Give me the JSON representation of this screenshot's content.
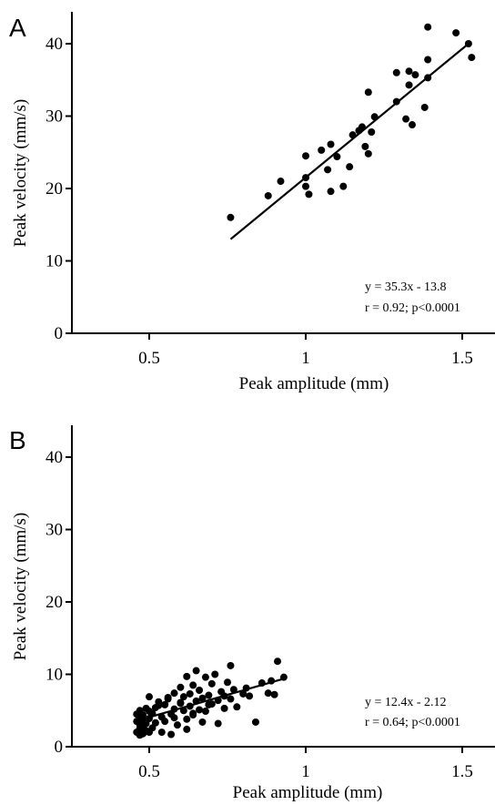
{
  "chart_data": [
    {
      "type": "scatter",
      "panel": "A",
      "xlabel": "Peak amplitude (mm)",
      "ylabel": "Peak velocity (mm/s)",
      "xlim": [
        0.25,
        1.58
      ],
      "ylim": [
        0,
        45
      ],
      "x_ticks": [
        0.5,
        1,
        1.5
      ],
      "x_tick_labels": [
        "0.5",
        "1",
        "1.5"
      ],
      "y_ticks": [
        0,
        10,
        20,
        30,
        40
      ],
      "y_tick_labels": [
        "0",
        "10",
        "20",
        "30",
        "40"
      ],
      "grid": false,
      "fit_line": {
        "x": [
          0.76,
          1.52
        ],
        "y": [
          13.0,
          40.0
        ]
      },
      "annotations": [
        "y = 35.3x - 13.8",
        "r = 0.92; p<0.0001"
      ],
      "series": [
        {
          "points": [
            [
              0.76,
              16.0
            ],
            [
              0.88,
              19.0
            ],
            [
              0.92,
              21.0
            ],
            [
              1.0,
              24.5
            ],
            [
              1.0,
              21.5
            ],
            [
              1.0,
              20.3
            ],
            [
              1.01,
              19.2
            ],
            [
              1.05,
              25.3
            ],
            [
              1.07,
              22.6
            ],
            [
              1.08,
              26.1
            ],
            [
              1.08,
              19.6
            ],
            [
              1.1,
              24.4
            ],
            [
              1.12,
              20.3
            ],
            [
              1.14,
              23.0
            ],
            [
              1.15,
              27.4
            ],
            [
              1.17,
              28.0
            ],
            [
              1.18,
              28.5
            ],
            [
              1.19,
              25.8
            ],
            [
              1.2,
              33.3
            ],
            [
              1.2,
              24.8
            ],
            [
              1.21,
              27.8
            ],
            [
              1.22,
              29.9
            ],
            [
              1.29,
              32.0
            ],
            [
              1.29,
              36.0
            ],
            [
              1.32,
              29.6
            ],
            [
              1.33,
              34.3
            ],
            [
              1.33,
              36.2
            ],
            [
              1.34,
              28.8
            ],
            [
              1.35,
              35.7
            ],
            [
              1.38,
              31.2
            ],
            [
              1.39,
              35.3
            ],
            [
              1.39,
              37.8
            ],
            [
              1.39,
              42.3
            ],
            [
              1.48,
              41.5
            ],
            [
              1.52,
              40.0
            ],
            [
              1.53,
              38.1
            ]
          ]
        }
      ]
    },
    {
      "type": "scatter",
      "panel": "B",
      "xlabel": "Peak amplitude (mm)",
      "ylabel": "Peak velocity (mm/s)",
      "xlim": [
        0.25,
        1.58
      ],
      "ylim": [
        0,
        45
      ],
      "x_ticks": [
        0.5,
        1,
        1.5
      ],
      "x_tick_labels": [
        "0.5",
        "1",
        "1.5"
      ],
      "y_ticks": [
        0,
        10,
        20,
        30,
        40
      ],
      "y_tick_labels": [
        "0",
        "10",
        "20",
        "30",
        "40"
      ],
      "grid": false,
      "fit_line": {
        "x": [
          0.47,
          0.93
        ],
        "y": [
          3.7,
          9.4
        ]
      },
      "annotations": [
        "y = 12.4x - 2.12",
        "r = 0.64; p<0.0001"
      ],
      "series": [
        {
          "points": [
            [
              0.46,
              2.0
            ],
            [
              0.46,
              3.5
            ],
            [
              0.46,
              4.5
            ],
            [
              0.47,
              1.6
            ],
            [
              0.47,
              2.5
            ],
            [
              0.47,
              3.0
            ],
            [
              0.47,
              4.0
            ],
            [
              0.47,
              5.0
            ],
            [
              0.48,
              1.8
            ],
            [
              0.48,
              2.8
            ],
            [
              0.48,
              3.6
            ],
            [
              0.48,
              4.4
            ],
            [
              0.49,
              2.2
            ],
            [
              0.49,
              3.2
            ],
            [
              0.49,
              5.3
            ],
            [
              0.5,
              2.0
            ],
            [
              0.5,
              3.9
            ],
            [
              0.5,
              6.9
            ],
            [
              0.51,
              2.6
            ],
            [
              0.51,
              4.6
            ],
            [
              0.52,
              5.4
            ],
            [
              0.52,
              3.3
            ],
            [
              0.53,
              6.2
            ],
            [
              0.54,
              4.1
            ],
            [
              0.54,
              2.0
            ],
            [
              0.55,
              5.8
            ],
            [
              0.55,
              3.5
            ],
            [
              0.56,
              6.6
            ],
            [
              0.57,
              4.5
            ],
            [
              0.57,
              1.7
            ],
            [
              0.58,
              7.4
            ],
            [
              0.58,
              5.2
            ],
            [
              0.59,
              3.0
            ],
            [
              0.6,
              6.1
            ],
            [
              0.6,
              8.2
            ],
            [
              0.61,
              5.0
            ],
            [
              0.61,
              6.9
            ],
            [
              0.62,
              3.8
            ],
            [
              0.62,
              9.7
            ],
            [
              0.63,
              5.6
            ],
            [
              0.63,
              7.3
            ],
            [
              0.64,
              4.4
            ],
            [
              0.64,
              8.5
            ],
            [
              0.65,
              6.3
            ],
            [
              0.65,
              10.5
            ],
            [
              0.66,
              5.1
            ],
            [
              0.66,
              7.8
            ],
            [
              0.67,
              3.4
            ],
            [
              0.67,
              6.7
            ],
            [
              0.68,
              9.6
            ],
            [
              0.68,
              4.9
            ],
            [
              0.69,
              7.1
            ],
            [
              0.7,
              5.9
            ],
            [
              0.7,
              8.7
            ],
            [
              0.71,
              10.0
            ],
            [
              0.72,
              6.4
            ],
            [
              0.72,
              3.2
            ],
            [
              0.73,
              7.6
            ],
            [
              0.74,
              5.3
            ],
            [
              0.75,
              8.9
            ],
            [
              0.76,
              6.6
            ],
            [
              0.76,
              11.2
            ],
            [
              0.77,
              7.9
            ],
            [
              0.78,
              5.5
            ],
            [
              0.8,
              7.3
            ],
            [
              0.81,
              8.1
            ],
            [
              0.82,
              7.0
            ],
            [
              0.84,
              3.4
            ],
            [
              0.86,
              8.8
            ],
            [
              0.88,
              7.4
            ],
            [
              0.89,
              9.1
            ],
            [
              0.9,
              7.2
            ],
            [
              0.91,
              11.8
            ],
            [
              0.93,
              9.6
            ],
            [
              0.56,
              6.8
            ],
            [
              0.6,
              6.0
            ],
            [
              0.64,
              4.6
            ],
            [
              0.69,
              5.8
            ],
            [
              0.74,
              7.0
            ],
            [
              0.5,
              4.9
            ],
            [
              0.53,
              5.7
            ],
            [
              0.58,
              4.0
            ],
            [
              0.62,
              2.4
            ]
          ]
        }
      ]
    }
  ]
}
